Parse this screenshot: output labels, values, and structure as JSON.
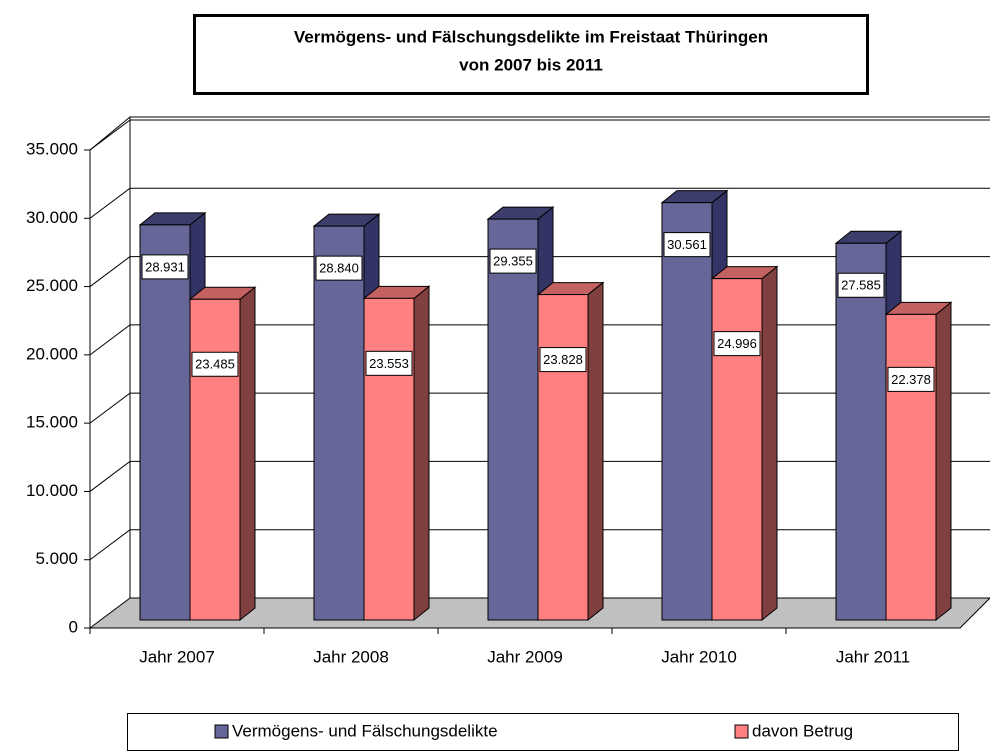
{
  "chart_data": {
    "type": "bar3d",
    "title": [
      "Vermögens- und Fälschungsdelikte im Freistaat Thüringen",
      "von 2007 bis 2011"
    ],
    "categories": [
      "Jahr 2007",
      "Jahr 2008",
      "Jahr 2009",
      "Jahr 2010",
      "Jahr 2011"
    ],
    "series": [
      {
        "name": "Vermögens- und Fälschungsdelikte",
        "color": "#666699",
        "side": "#333366",
        "top": "#3d3d6b",
        "values": [
          28931,
          28840,
          29355,
          30561,
          27585
        ],
        "value_labels": [
          "28.931",
          "28.840",
          "29.355",
          "30.561",
          "27.585"
        ]
      },
      {
        "name": "davon Betrug",
        "color": "#ff8080",
        "side": "#804040",
        "top": "#c46262",
        "values": [
          23485,
          23553,
          23828,
          24996,
          22378
        ],
        "value_labels": [
          "23.485",
          "23.553",
          "23.828",
          "24.996",
          "22.378"
        ]
      }
    ],
    "ylim": [
      0,
      35000
    ],
    "yticks": [
      0,
      {
        "value": 5000,
        "label": "5.000"
      },
      {
        "value": 10000,
        "label": "10.000"
      },
      {
        "value": 15000,
        "label": "15.000"
      },
      {
        "value": 20000,
        "label": "20.000"
      },
      {
        "value": 25000,
        "label": "25.000"
      },
      {
        "value": 30000,
        "label": "30.000"
      },
      {
        "value": 35000,
        "label": "35.000"
      }
    ],
    "grid": true
  }
}
